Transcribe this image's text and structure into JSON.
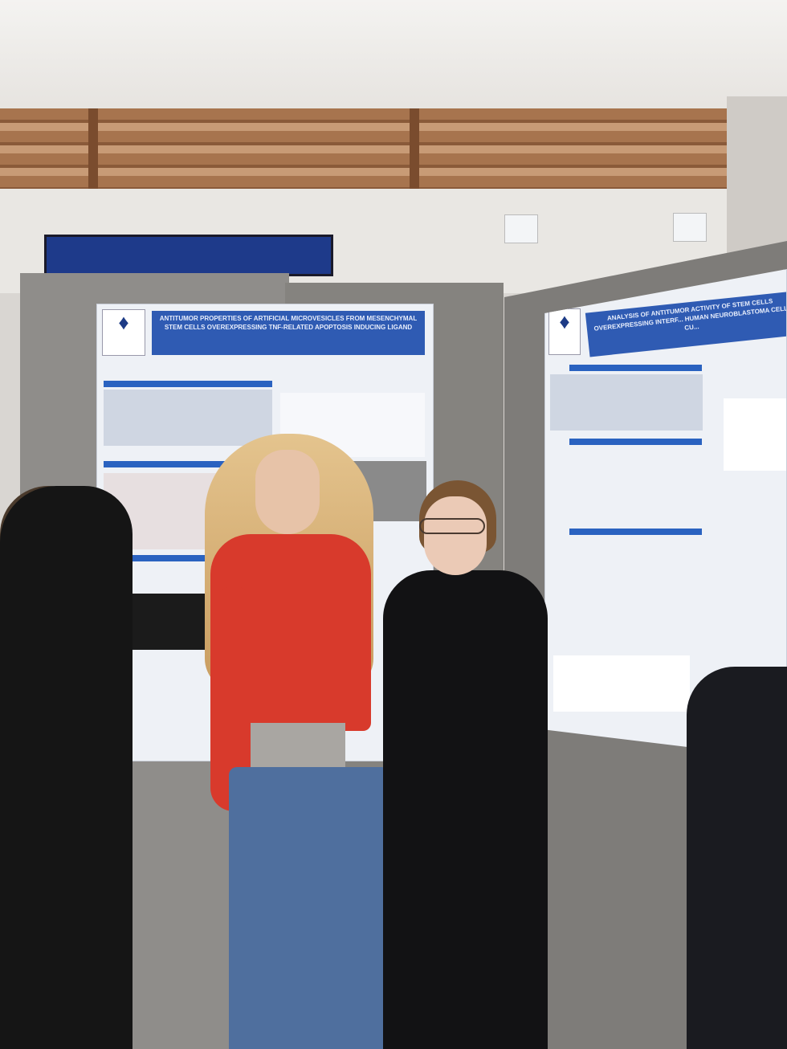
{
  "scene": "poster session",
  "posters": {
    "left": {
      "title": "ANTITUMOR PROPERTIES OF ARTIFICIAL MICROVESICLES FROM MESENCHYMAL STEM CELLS OVEREXPRESSING TNF-RELATED APOPTOSIS INDUCING LIGAND"
    },
    "right": {
      "title": "ANALYSIS OF ANTITUMOR ACTIVITY OF STEM CELLS OVEREXPRESSING INTERF... HUMAN NEUROBLASTOMA CELL CU..."
    }
  },
  "colors": {
    "poster_header": "#2f5bb3",
    "sweatshirt": "#d83a2c",
    "panel": "#8f8d8a"
  }
}
